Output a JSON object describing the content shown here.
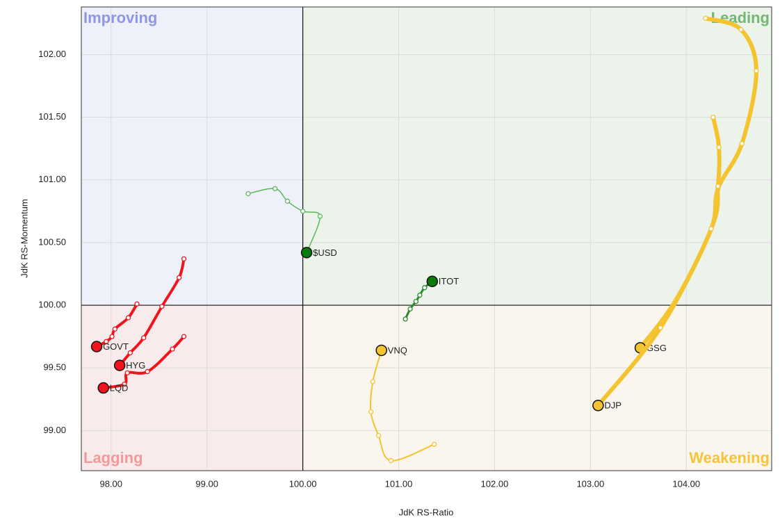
{
  "chart_data": {
    "type": "rrg",
    "xlabel": "JdK RS-Ratio",
    "ylabel": "JdK RS-Momentum",
    "xlim": [
      97.69,
      104.89
    ],
    "ylim": [
      98.68,
      102.38
    ],
    "xticks": [
      {
        "value": 98,
        "label": "98.00"
      },
      {
        "value": 99,
        "label": "99.00"
      },
      {
        "value": 100,
        "label": "100.00"
      },
      {
        "value": 101,
        "label": "101.00"
      },
      {
        "value": 102,
        "label": "102.00"
      },
      {
        "value": 103,
        "label": "103.00"
      },
      {
        "value": 104,
        "label": "104.00"
      }
    ],
    "yticks": [
      {
        "value": 99,
        "label": "99.00"
      },
      {
        "value": 99.5,
        "label": "99.50"
      },
      {
        "value": 100,
        "label": "100.00"
      },
      {
        "value": 100.5,
        "label": "100.50"
      },
      {
        "value": 101,
        "label": "101.00"
      },
      {
        "value": 101.5,
        "label": "101.50"
      },
      {
        "value": 102,
        "label": "102.00"
      }
    ],
    "grid": true,
    "center": {
      "x": 100,
      "y": 100
    },
    "quadrants": [
      {
        "name": "Improving",
        "corner": "top-left",
        "fill": "#eef0fa",
        "color": "#8e97e6"
      },
      {
        "name": "Leading",
        "corner": "top-right",
        "fill": "#ebf3ea",
        "color": "#72b872"
      },
      {
        "name": "Lagging",
        "corner": "bottom-left",
        "fill": "#f8ebeb",
        "color": "#f29a9a"
      },
      {
        "name": "Weakening",
        "corner": "bottom-right",
        "fill": "#faf6ee",
        "color": "#f4c43a"
      }
    ],
    "series": [
      {
        "name": "$USD",
        "color": "#5cb85c",
        "head_color": "#0b7a0b",
        "width": 1.5,
        "x": [
          99.43,
          99.71,
          99.84,
          100.0,
          100.18,
          100.04
        ],
        "y": [
          100.89,
          100.93,
          100.83,
          100.75,
          100.71,
          100.42
        ]
      },
      {
        "name": "ITOT",
        "color": "#2a8a2a",
        "head_color": "#0b7a0b",
        "width": 3,
        "x": [
          101.07,
          101.12,
          101.18,
          101.22,
          101.27,
          101.35
        ],
        "y": [
          99.89,
          99.97,
          100.03,
          100.08,
          100.14,
          100.19
        ]
      },
      {
        "name": "VNQ",
        "color": "#f4c430",
        "head_color": "#f4c430",
        "width": 2,
        "x": [
          101.37,
          100.92,
          100.79,
          100.71,
          100.73,
          100.82
        ],
        "y": [
          98.89,
          98.76,
          98.96,
          99.15,
          99.39,
          99.64
        ]
      },
      {
        "name": "GSG",
        "color": "#f4c430",
        "head_color": "#f4c430",
        "width": 6,
        "x": [
          104.2,
          104.57,
          104.73,
          104.58,
          104.33,
          104.26,
          103.89,
          103.52
        ],
        "y": [
          102.29,
          102.2,
          101.87,
          101.29,
          100.93,
          100.61,
          100.04,
          99.66
        ]
      },
      {
        "name": "DJP",
        "color": "#f4c430",
        "head_color": "#f4c430",
        "width": 6,
        "x": [
          104.28,
          104.34,
          104.33,
          104.26,
          103.73,
          103.08
        ],
        "y": [
          101.5,
          101.26,
          100.95,
          100.61,
          99.82,
          99.2
        ]
      },
      {
        "name": "GOVT",
        "color": "#f0141c",
        "head_color": "#f0141c",
        "width": 4,
        "x": [
          98.27,
          98.18,
          98.04,
          98.01,
          97.95,
          97.85
        ],
        "y": [
          100.01,
          99.9,
          99.81,
          99.75,
          99.71,
          99.67
        ]
      },
      {
        "name": "HYG",
        "color": "#f0141c",
        "head_color": "#f0141c",
        "width": 4,
        "x": [
          98.76,
          98.71,
          98.53,
          98.34,
          98.2,
          98.09
        ],
        "y": [
          100.37,
          100.22,
          99.99,
          99.74,
          99.62,
          99.52
        ]
      },
      {
        "name": "LQD",
        "color": "#f0141c",
        "head_color": "#f0141c",
        "width": 4,
        "x": [
          98.76,
          98.64,
          98.38,
          98.17,
          98.14,
          97.92
        ],
        "y": [
          99.75,
          99.65,
          99.47,
          99.46,
          99.37,
          99.34
        ]
      }
    ]
  }
}
